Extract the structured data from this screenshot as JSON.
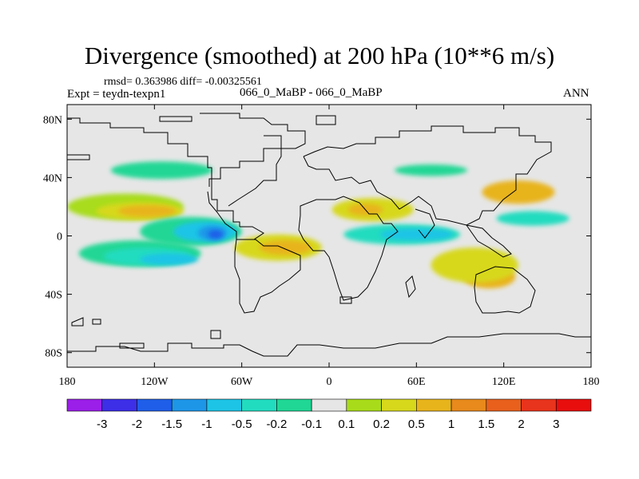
{
  "title": "Divergence (smoothed) at 200 hPa (10**6 m/s)",
  "stats": "rmsd= 0.363986  diff= -0.00325561",
  "left_label": "Expt = teydn-texpn1",
  "center_label": "066_0_MaBP - 066_0_MaBP",
  "right_label": "ANN",
  "chart_data": {
    "type": "heatmap",
    "title": "Divergence (smoothed) at 200 hPa (10**6 m/s)",
    "units": "10**6 m/s",
    "variable": "Divergence (smoothed)",
    "level": "200 hPa",
    "x_ticks": [
      "180",
      "120W",
      "60W",
      "0",
      "60E",
      "120E",
      "180"
    ],
    "y_ticks": [
      "80N",
      "40N",
      "0",
      "40S",
      "80S"
    ],
    "xlim": [
      -180,
      180
    ],
    "ylim": [
      -90,
      90
    ],
    "colorbar": {
      "labels": [
        "-3",
        "-2",
        "-1.5",
        "-1",
        "-0.5",
        "-0.2",
        "-0.1",
        "0.1",
        "0.2",
        "0.5",
        "1",
        "1.5",
        "2",
        "3"
      ],
      "colors": [
        "#9b1fe8",
        "#3d2ee8",
        "#1f5ee8",
        "#1e96e8",
        "#1ec4e6",
        "#22dcc0",
        "#20d795",
        "#e6e6e6",
        "#a8dc1a",
        "#d7d81c",
        "#e8b41c",
        "#e88a1c",
        "#e8601c",
        "#e8341c",
        "#e80e0e"
      ]
    },
    "fields": [
      {
        "level": "0.1..0.2",
        "color": "#a8dc1a",
        "lon": -140,
        "lat": 20,
        "w": 40,
        "h": 9
      },
      {
        "level": "0.2..0.5",
        "color": "#d7d81c",
        "lon": -130,
        "lat": 17,
        "w": 30,
        "h": 6
      },
      {
        "level": "0.5..1",
        "color": "#e8b41c",
        "lon": -125,
        "lat": 17,
        "w": 20,
        "h": 4
      },
      {
        "level": "-0.1..-0.2",
        "color": "#20d795",
        "lon": -130,
        "lat": -12,
        "w": 42,
        "h": 9
      },
      {
        "level": "-0.2..-0.5",
        "color": "#22dcc0",
        "lon": -125,
        "lat": -14,
        "w": 30,
        "h": 6
      },
      {
        "level": "-0.5..-1",
        "color": "#1ec4e6",
        "lon": -110,
        "lat": -16,
        "w": 20,
        "h": 4
      },
      {
        "level": "-0.1..-0.2",
        "color": "#20d795",
        "lon": -95,
        "lat": 3,
        "w": 35,
        "h": 10
      },
      {
        "level": "-0.5..-1",
        "color": "#1ec4e6",
        "lon": -85,
        "lat": 3,
        "w": 22,
        "h": 7
      },
      {
        "level": "-1..-1.5",
        "color": "#1e96e8",
        "lon": -80,
        "lat": 2,
        "w": 10,
        "h": 5
      },
      {
        "level": "-1.5..-2",
        "color": "#1f5ee8",
        "lon": -78,
        "lat": 1,
        "w": 5,
        "h": 3
      },
      {
        "level": "0.2..0.5",
        "color": "#d7d81c",
        "lon": -35,
        "lat": -8,
        "w": 30,
        "h": 9
      },
      {
        "level": "0.5..1",
        "color": "#e8b41c",
        "lon": -30,
        "lat": -8,
        "w": 18,
        "h": 5
      },
      {
        "level": "0.2..0.5",
        "color": "#d7d81c",
        "lon": 30,
        "lat": 18,
        "w": 28,
        "h": 8
      },
      {
        "level": "0.5..1",
        "color": "#e8b41c",
        "lon": 25,
        "lat": 18,
        "w": 12,
        "h": 4
      },
      {
        "level": "-0.2..-0.5",
        "color": "#22dcc0",
        "lon": 50,
        "lat": 1,
        "w": 40,
        "h": 7
      },
      {
        "level": "-0.5..-1",
        "color": "#1ec4e6",
        "lon": 60,
        "lat": 1,
        "w": 25,
        "h": 4
      },
      {
        "level": "0.5..1",
        "color": "#e8b41c",
        "lon": 110,
        "lat": -28,
        "w": 18,
        "h": 8
      },
      {
        "level": "0.2..0.5",
        "color": "#d7d81c",
        "lon": 100,
        "lat": -20,
        "w": 30,
        "h": 12
      },
      {
        "level": "-0.1..-0.2",
        "color": "#20d795",
        "lon": -115,
        "lat": 45,
        "w": 35,
        "h": 6
      },
      {
        "level": "-0.1..-0.2",
        "color": "#20d795",
        "lon": 70,
        "lat": 45,
        "w": 25,
        "h": 4
      },
      {
        "level": "0.5..1",
        "color": "#e8b41c",
        "lon": 130,
        "lat": 30,
        "w": 25,
        "h": 8
      },
      {
        "level": "-0.2..-0.5",
        "color": "#22dcc0",
        "lon": 140,
        "lat": 12,
        "w": 25,
        "h": 5
      }
    ]
  }
}
